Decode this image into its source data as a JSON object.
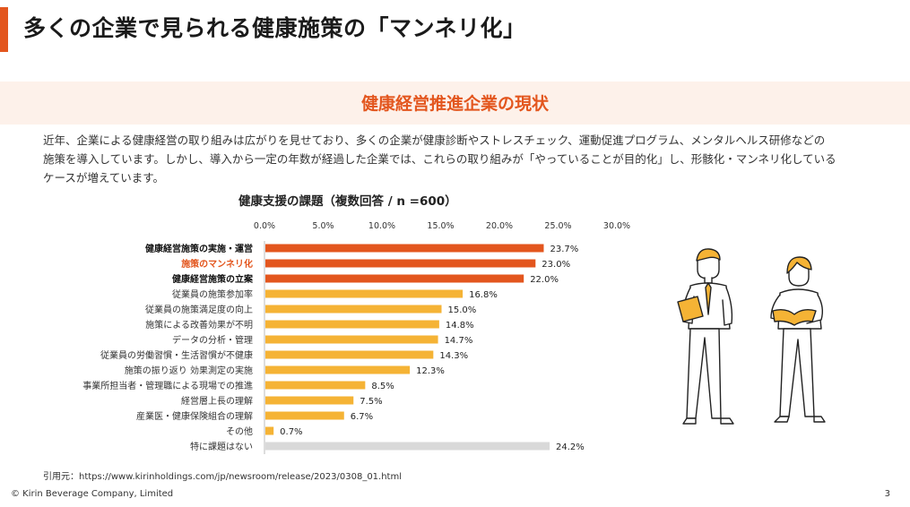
{
  "slide": {
    "title": "多くの企業で見られる健康施策の「マンネリ化」",
    "section_title": "健康経営推進企業の現状",
    "body_lines": [
      "近年、企業による健康経営の取り組みは広がりを見せており、多くの企業が健康診断やストレスチェック、運動促進プログラム、メンタルヘルス研修などの",
      "施策を導入しています。しかし、導入から一定の年数が経過した企業では、これらの取り組みが「やっていることが目的化」し、形骸化・マンネリ化している",
      "ケースが増えています。"
    ],
    "footnote": "引用元：https://www.kirinholdings.com/jp/newsroom/release/2023/0308_01.html",
    "copyright": "© Kirin Beverage Company, Limited",
    "page_number": "3"
  },
  "colors": {
    "accent": "#e3561e",
    "highlight": "#f5b335",
    "neutral": "#d9d9d9",
    "band": "#fdf1ea"
  },
  "chart_data": {
    "type": "bar",
    "orientation": "horizontal",
    "title": "健康支援の課題（複数回答 / n =600）",
    "xlim": [
      0,
      30
    ],
    "ticks": [
      0,
      5,
      10,
      15,
      20,
      25,
      30
    ],
    "tick_labels": [
      "0.0%",
      "5.0%",
      "10.0%",
      "15.0%",
      "20.0%",
      "25.0%",
      "30.0%"
    ],
    "grid": false,
    "categories": [
      "健康経営施策の実施・運営",
      "施策のマンネリ化",
      "健康経営施策の立案",
      "従業員の施策参加率",
      "従業員の施策満足度の向上",
      "施策による改善効果が不明",
      "データの分析・管理",
      "従業員の労働習慣・生活習慣が不健康",
      "施策の振り返り 効果測定の実施",
      "事業所担当者・管理職による現場での推進",
      "経営層上長の理解",
      "産業医・健康保険組合の理解",
      "その他",
      "特に課題はない"
    ],
    "values": [
      23.7,
      23.0,
      22.0,
      16.8,
      15.0,
      14.8,
      14.7,
      14.3,
      12.3,
      8.5,
      7.5,
      6.7,
      0.7,
      24.2
    ],
    "value_labels": [
      "23.7%",
      "23.0%",
      "22.0%",
      "16.8%",
      "15.0%",
      "14.8%",
      "14.7%",
      "14.3%",
      "12.3%",
      "8.5%",
      "7.5%",
      "6.7%",
      "0.7%",
      "24.2%"
    ],
    "bar_colors": [
      "#e3561e",
      "#e3561e",
      "#e3561e",
      "#f5b335",
      "#f5b335",
      "#f5b335",
      "#f5b335",
      "#f5b335",
      "#f5b335",
      "#f5b335",
      "#f5b335",
      "#f5b335",
      "#f5b335",
      "#d9d9d9"
    ],
    "label_colors": [
      "#111111",
      "#e3561e",
      "#111111",
      "#333333",
      "#333333",
      "#333333",
      "#333333",
      "#333333",
      "#333333",
      "#333333",
      "#333333",
      "#333333",
      "#333333",
      "#333333"
    ],
    "label_bold": [
      true,
      true,
      true,
      false,
      false,
      false,
      false,
      false,
      false,
      false,
      false,
      false,
      false,
      false
    ]
  },
  "illustration": {
    "description_icon": "two-business-people-icon"
  }
}
